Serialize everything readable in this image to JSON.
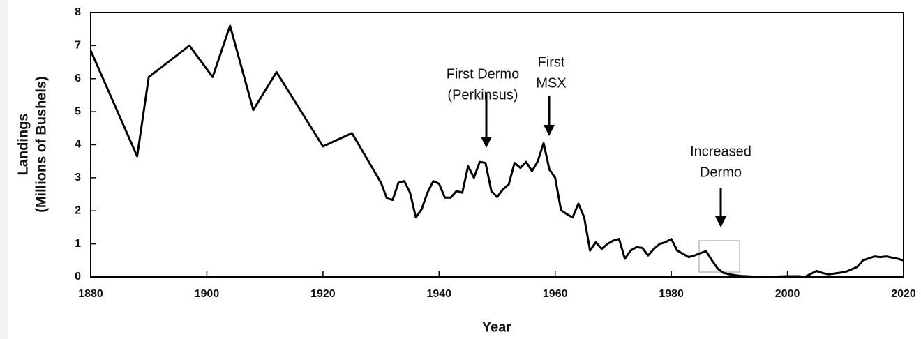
{
  "chart_data": {
    "type": "line",
    "xlabel": "Year",
    "ylabel": [
      "Landings",
      "(Millions of Bushels)"
    ],
    "x": [
      1880,
      1888,
      1890,
      1897,
      1901,
      1904,
      1908,
      1912,
      1920,
      1925,
      1930,
      1931,
      1932,
      1933,
      1934,
      1935,
      1936,
      1937,
      1938,
      1939,
      1940,
      1941,
      1942,
      1943,
      1944,
      1945,
      1946,
      1947,
      1948,
      1949,
      1950,
      1951,
      1952,
      1953,
      1954,
      1955,
      1956,
      1957,
      1958,
      1959,
      1960,
      1961,
      1962,
      1963,
      1964,
      1965,
      1966,
      1967,
      1968,
      1969,
      1970,
      1971,
      1972,
      1973,
      1974,
      1975,
      1976,
      1977,
      1978,
      1979,
      1980,
      1981,
      1982,
      1983,
      1984,
      1985,
      1986,
      1987,
      1988,
      1989,
      1990,
      1991,
      1992,
      1993,
      1994,
      1996,
      2000,
      2002,
      2003,
      2005,
      2006,
      2007,
      2008,
      2010,
      2012,
      2013,
      2015,
      2016,
      2017,
      2019,
      2020
    ],
    "series": [
      {
        "name": "Landings",
        "color": "#000000",
        "values": [
          6.85,
          3.65,
          6.05,
          7.0,
          6.05,
          7.6,
          5.05,
          6.2,
          3.95,
          4.35,
          2.85,
          2.38,
          2.33,
          2.85,
          2.9,
          2.55,
          1.8,
          2.05,
          2.55,
          2.9,
          2.82,
          2.4,
          2.4,
          2.6,
          2.55,
          3.35,
          3.0,
          3.48,
          3.45,
          2.6,
          2.42,
          2.65,
          2.8,
          3.45,
          3.3,
          3.48,
          3.2,
          3.5,
          4.05,
          3.25,
          3.0,
          2.02,
          1.9,
          1.8,
          2.22,
          1.8,
          0.8,
          1.05,
          0.85,
          1.0,
          1.1,
          1.15,
          0.55,
          0.8,
          0.9,
          0.88,
          0.65,
          0.85,
          1.0,
          1.05,
          1.15,
          0.8,
          0.7,
          0.6,
          0.65,
          0.72,
          0.78,
          0.5,
          0.25,
          0.12,
          0.08,
          0.05,
          0.03,
          0.02,
          0.01,
          0.0,
          0.02,
          0.02,
          0.0,
          0.18,
          0.12,
          0.08,
          0.1,
          0.15,
          0.3,
          0.5,
          0.62,
          0.6,
          0.62,
          0.55,
          0.5
        ]
      }
    ],
    "xlim": [
      1880,
      2020
    ],
    "xticks": [
      1880,
      1900,
      1920,
      1940,
      1960,
      1980,
      2000,
      2020
    ],
    "ylim": [
      0,
      8
    ],
    "yticks": [
      0,
      1,
      2,
      3,
      4,
      5,
      6,
      7,
      8
    ],
    "grid": false,
    "annotations": [
      {
        "lines": [
          "First Dermo",
          "(Perkinsus)"
        ]
      },
      {
        "lines": [
          "First",
          "MSX"
        ]
      },
      {
        "lines": [
          "Increased",
          "Dermo"
        ]
      }
    ]
  }
}
